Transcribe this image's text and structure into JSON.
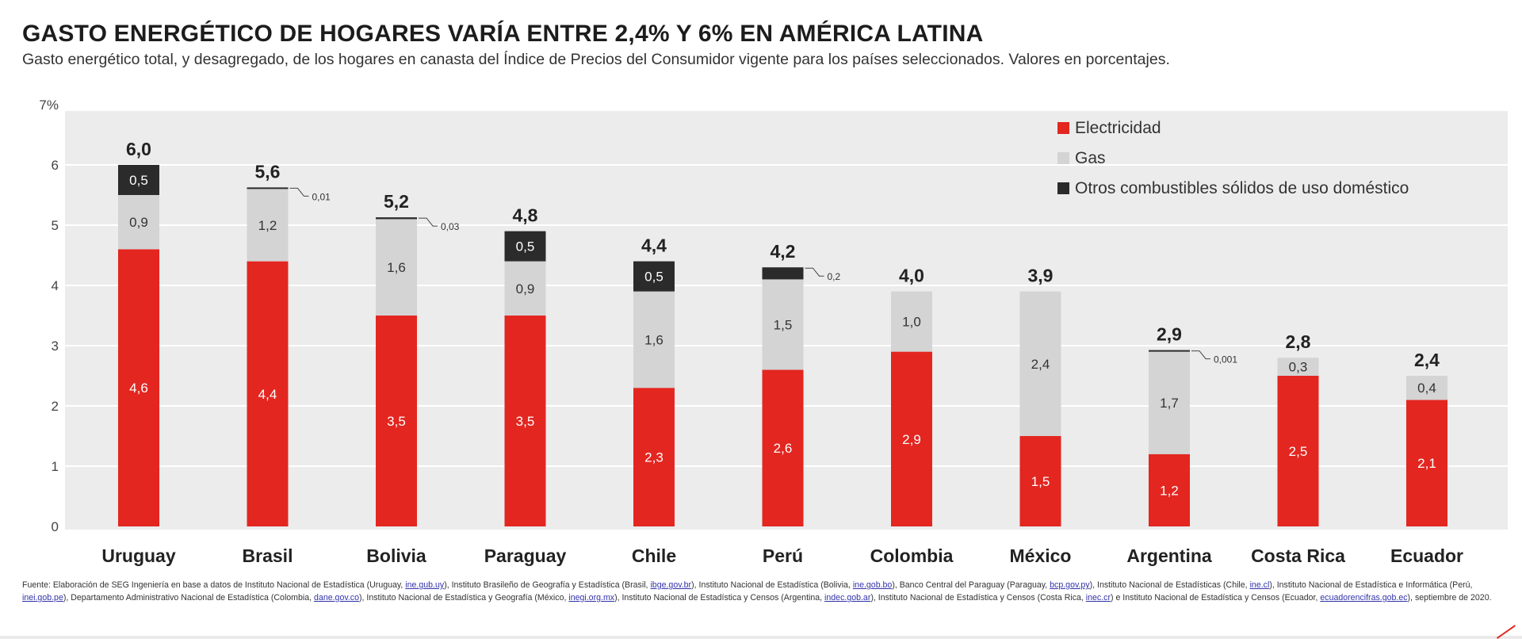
{
  "header": {
    "title": "GASTO ENERGÉTICO DE HOGARES VARÍA ENTRE 2,4% Y 6% EN AMÉRICA LATINA",
    "subtitle": "Gasto energético total, y desagregado, de los hogares en canasta del Índice de Precios del Consumidor vigente para los países seleccionados. Valores en porcentajes."
  },
  "chart_data": {
    "type": "bar",
    "stacked": true,
    "title": "GASTO ENERGÉTICO DE HOGARES VARÍA ENTRE 2,4% Y 6% EN AMÉRICA LATINA",
    "categories": [
      "Uruguay",
      "Brasil",
      "Bolivia",
      "Paraguay",
      "Chile",
      "Perú",
      "Colombia",
      "México",
      "Argentina",
      "Costa Rica",
      "Ecuador"
    ],
    "totals": [
      6.0,
      5.6,
      5.2,
      4.8,
      4.4,
      4.2,
      4.0,
      3.9,
      2.9,
      2.8,
      2.4
    ],
    "total_labels": [
      "6,0",
      "5,6",
      "5,2",
      "4,8",
      "4,4",
      "4,2",
      "4,0",
      "3,9",
      "2,9",
      "2,8",
      "2,4"
    ],
    "series": [
      {
        "name": "Electricidad",
        "color": "#e32620",
        "values": [
          4.6,
          4.4,
          3.5,
          3.5,
          2.3,
          2.6,
          2.9,
          1.5,
          1.2,
          2.5,
          2.1
        ],
        "labels": [
          "4,6",
          "4,4",
          "3,5",
          "3,5",
          "2,3",
          "2,6",
          "2,9",
          "1,5",
          "1,2",
          "2,5",
          "2,1"
        ]
      },
      {
        "name": "Gas",
        "color": "#d4d4d4",
        "values": [
          0.9,
          1.2,
          1.6,
          0.9,
          1.6,
          1.5,
          1.0,
          2.4,
          1.7,
          0.3,
          0.4
        ],
        "labels": [
          "0,9",
          "1,2",
          "1,6",
          "0,9",
          "1,6",
          "1,5",
          "1,0",
          "2,4",
          "1,7",
          "0,3",
          "0,4"
        ]
      },
      {
        "name": "Otros combustibles sólidos de uso doméstico",
        "color": "#2b2b2b",
        "values": [
          0.5,
          0.01,
          0.03,
          0.5,
          0.5,
          0.2,
          0,
          0,
          0.001,
          0,
          0
        ],
        "labels": [
          "0,5",
          "0,01",
          "0,03",
          "0,5",
          "0,5",
          "0,2",
          "",
          "",
          "0,001",
          "",
          ""
        ],
        "callout": [
          false,
          true,
          true,
          false,
          false,
          true,
          false,
          false,
          true,
          false,
          false
        ]
      }
    ],
    "y_ticks": [
      "0",
      "1",
      "2",
      "3",
      "4",
      "5",
      "6",
      "7%"
    ],
    "ylim": [
      0,
      7
    ],
    "grid": true,
    "legend_position": "top-right"
  },
  "source": {
    "segments": [
      {
        "text": "Fuente: Elaboración de SEG Ingeniería en base a datos de Instituto Nacional de Estadística (Uruguay, "
      },
      {
        "text": "ine.gub.uy",
        "link": true
      },
      {
        "text": "), Instituto Brasileño de Geografía y Estadística (Brasil, "
      },
      {
        "text": "ibge.gov.br",
        "link": true
      },
      {
        "text": "), Instituto Nacional de Estadística (Bolivia, "
      },
      {
        "text": "ine.gob.bo",
        "link": true
      },
      {
        "text": "), Banco Central del Paraguay (Paraguay, "
      },
      {
        "text": "bcp.gov.py",
        "link": true
      },
      {
        "text": "), Instituto Nacional de Estadísticas (Chile, "
      },
      {
        "text": "ine.cl",
        "link": true
      },
      {
        "text": "), Instituto Nacional de Estadística e Informática (Perú, "
      },
      {
        "text": "inei.gob.pe",
        "link": true
      },
      {
        "text": "), Departamento Administrativo Nacional de Estadística (Colombia, "
      },
      {
        "text": "dane.gov.co",
        "link": true
      },
      {
        "text": "), Instituto Nacional de Estadística y Geografía (México, "
      },
      {
        "text": "inegi.org.mx",
        "link": true
      },
      {
        "text": "), Instituto Nacional de Estadística y Censos (Argentina, "
      },
      {
        "text": "indec.gob.ar",
        "link": true
      },
      {
        "text": "), Instituto Nacional de Estadística y Censos (Costa Rica, "
      },
      {
        "text": "inec.cr",
        "link": true
      },
      {
        "text": ") e Instituto Nacional de Estadística y Censos (Ecuador, "
      },
      {
        "text": "ecuadorencifras.gob.ec",
        "link": true
      },
      {
        "text": "), septiembre de 2020."
      }
    ]
  }
}
